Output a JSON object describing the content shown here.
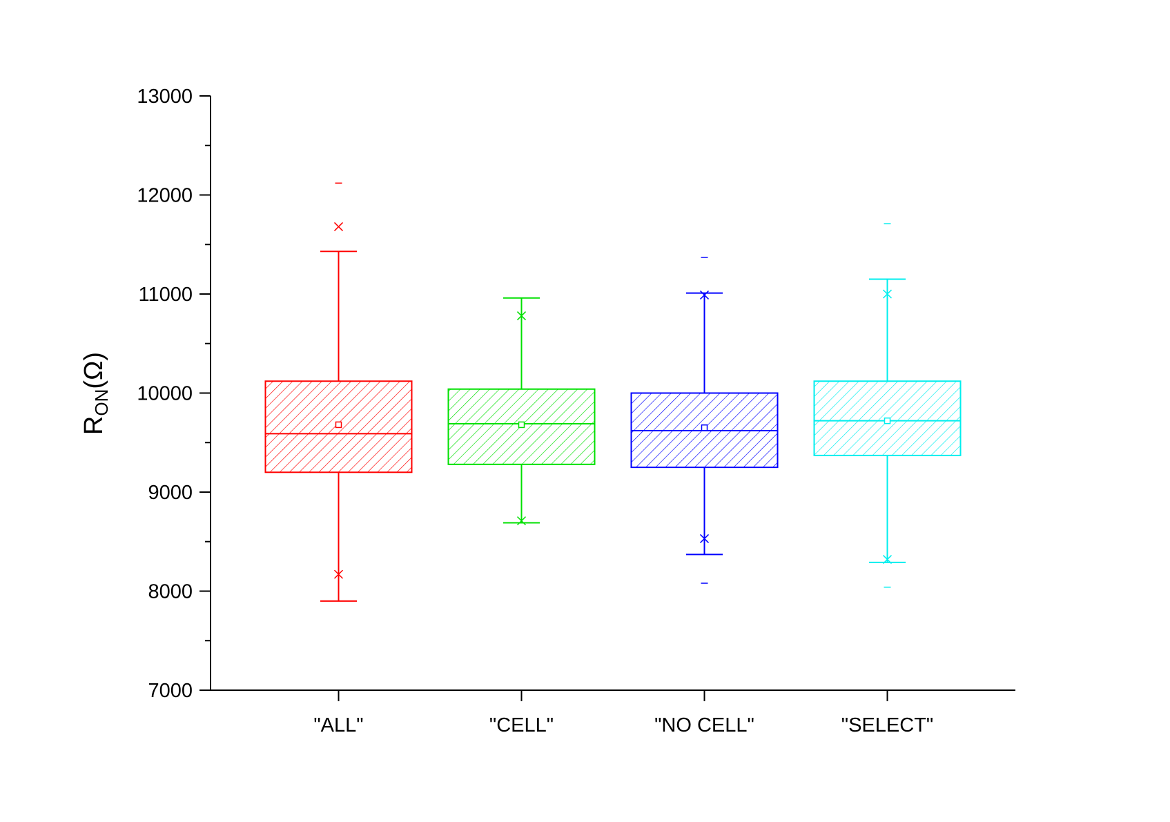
{
  "chart_data": {
    "type": "box",
    "title": "",
    "xlabel": "",
    "ylabel": {
      "main": "R",
      "subscript": "ON",
      "unit": "(Ω)"
    },
    "ylim": [
      7000,
      13000
    ],
    "yticks": [
      7000,
      8000,
      9000,
      10000,
      11000,
      12000,
      13000
    ],
    "yminor_step": 500,
    "grid": false,
    "legend": "none",
    "fill_pattern": "diagonal-hatch",
    "categories": [
      "\"ALL\"",
      "\"CELL\"",
      "\"NO CELL\"",
      "\"SELECT\""
    ],
    "boxes": [
      {
        "category": "\"ALL\"",
        "color": "#ff0000",
        "whisker_low": 7900,
        "q1": 9200,
        "median": 9590,
        "q3": 10120,
        "whisker_high": 11430,
        "mean": 9680,
        "pct_1": 8170,
        "pct_99": 11680,
        "min": null,
        "max": 12120
      },
      {
        "category": "\"CELL\"",
        "color": "#00e000",
        "whisker_low": 8690,
        "q1": 9280,
        "median": 9690,
        "q3": 10040,
        "whisker_high": 10960,
        "mean": 9680,
        "pct_1": 8710,
        "pct_99": 10780,
        "min": null,
        "max": null
      },
      {
        "category": "\"NO CELL\"",
        "color": "#0000ff",
        "whisker_low": 8370,
        "q1": 9250,
        "median": 9620,
        "q3": 10000,
        "whisker_high": 11010,
        "mean": 9650,
        "pct_1": 8530,
        "pct_99": 10990,
        "min": 8080,
        "max": 11370
      },
      {
        "category": "\"SELECT\"",
        "color": "#00eeee",
        "whisker_low": 8290,
        "q1": 9370,
        "median": 9720,
        "q3": 10120,
        "whisker_high": 11150,
        "mean": 9720,
        "pct_1": 8320,
        "pct_99": 11000,
        "min": 8040,
        "max": 11710
      }
    ]
  }
}
